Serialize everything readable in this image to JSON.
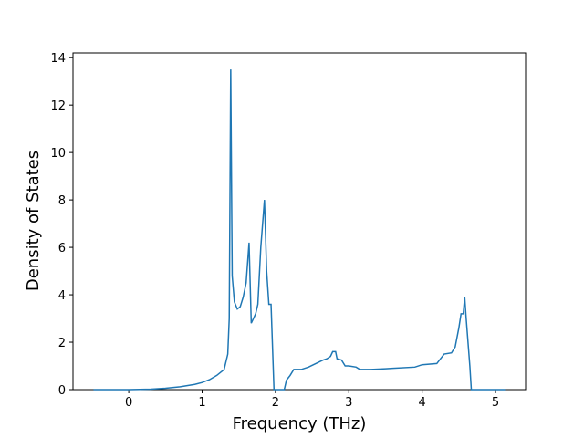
{
  "chart_data": {
    "type": "line",
    "x_label": "Frequency (THz)",
    "y_label": "Density of States",
    "x": [
      -0.48,
      0,
      0.3,
      0.5,
      0.7,
      0.9,
      1.0,
      1.1,
      1.2,
      1.3,
      1.35,
      1.37,
      1.39,
      1.41,
      1.44,
      1.48,
      1.52,
      1.56,
      1.6,
      1.64,
      1.67,
      1.7,
      1.73,
      1.76,
      1.8,
      1.85,
      1.88,
      1.91,
      1.94,
      1.98,
      2.12,
      2.15,
      2.2,
      2.25,
      2.35,
      2.45,
      2.55,
      2.65,
      2.7,
      2.75,
      2.78,
      2.82,
      2.84,
      2.9,
      2.95,
      3.0,
      3.1,
      3.15,
      3.3,
      3.5,
      3.6,
      3.9,
      4.0,
      4.2,
      4.25,
      4.3,
      4.4,
      4.45,
      4.5,
      4.53,
      4.56,
      4.58,
      4.6,
      4.65,
      4.67,
      5.13
    ],
    "series": [
      {
        "color": "#1f77b4",
        "values": [
          0,
          0,
          0.02,
          0.06,
          0.12,
          0.22,
          0.3,
          0.42,
          0.6,
          0.85,
          1.5,
          3.0,
          13.5,
          4.8,
          3.7,
          3.4,
          3.5,
          3.9,
          4.5,
          6.2,
          2.8,
          3.0,
          3.2,
          3.6,
          6.0,
          8.0,
          5.0,
          3.6,
          3.6,
          0,
          0,
          0.4,
          0.6,
          0.85,
          0.85,
          0.95,
          1.1,
          1.25,
          1.3,
          1.4,
          1.6,
          1.6,
          1.3,
          1.25,
          1.0,
          1.0,
          0.95,
          0.85,
          0.85,
          0.88,
          0.9,
          0.95,
          1.05,
          1.1,
          1.3,
          1.5,
          1.55,
          1.8,
          2.6,
          3.2,
          3.2,
          3.9,
          3.0,
          1.0,
          0,
          0
        ]
      }
    ],
    "xlim": [
      -0.76,
      5.41
    ],
    "ylim": [
      0,
      14.2
    ],
    "xticks": [
      0,
      1,
      2,
      3,
      4,
      5
    ],
    "yticks": [
      0,
      2,
      4,
      6,
      8,
      10,
      12,
      14
    ]
  }
}
